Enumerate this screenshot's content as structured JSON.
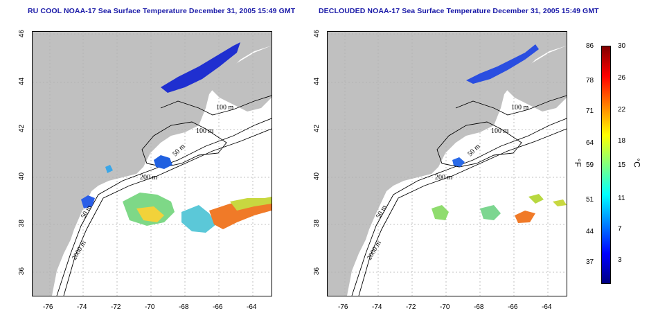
{
  "left_panel": {
    "title": "RU COOL NOAA-17 Sea Surface Temperature December 31, 2005 15:49 GMT",
    "labels": [
      "100 m",
      "100 m",
      "50 m",
      "200 m",
      "50 m",
      "2000 m"
    ]
  },
  "right_panel": {
    "title": "DECLOUDED NOAA-17 Sea Surface Temperature December 31, 2005 15:49 GMT",
    "labels": [
      "100 m",
      "100 m",
      "50 m",
      "200 m",
      "50 m",
      "2000 m"
    ]
  },
  "axes": {
    "x_ticks": [
      "-76",
      "-74",
      "-72",
      "-70",
      "-68",
      "-66",
      "-64"
    ],
    "y_ticks": [
      "46",
      "44",
      "42",
      "40",
      "38",
      "36"
    ]
  },
  "colorbar": {
    "fahrenheit_ticks": [
      "86",
      "78",
      "71",
      "64",
      "59",
      "51",
      "44",
      "37"
    ],
    "celsius_ticks": [
      "30",
      "26",
      "22",
      "18",
      "15",
      "11",
      "7",
      "3"
    ],
    "f_unit": "°F",
    "c_unit": "°C",
    "colors": [
      "#000080",
      "#0000ff",
      "#0080ff",
      "#00ffff",
      "#7fff7f",
      "#ffff00",
      "#ff8000",
      "#ff0000",
      "#800000"
    ]
  }
}
